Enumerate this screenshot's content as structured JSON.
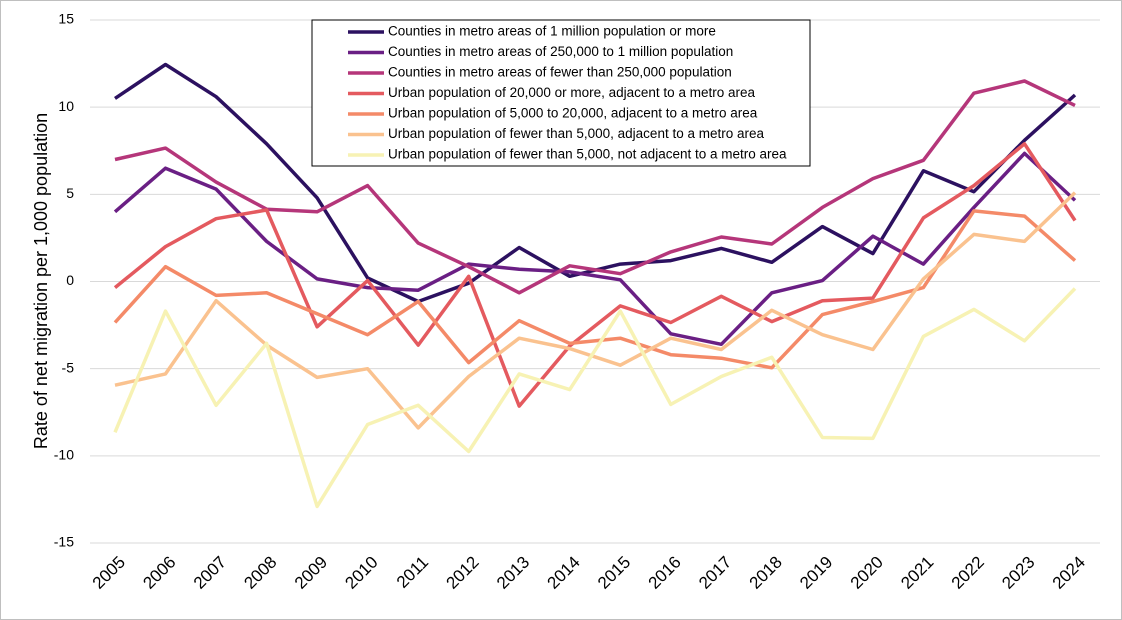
{
  "chart_data": {
    "type": "line",
    "y_label": "Rate of net migration per 1,000 population",
    "categories": [
      "2005",
      "2006",
      "2007",
      "2008",
      "2009",
      "2010",
      "2011",
      "2012",
      "2013",
      "2014",
      "2015",
      "2016",
      "2017",
      "2018",
      "2019",
      "2020",
      "2021",
      "2022",
      "2023",
      "2024"
    ],
    "ylim": [
      -15,
      15
    ],
    "yticks": [
      -15,
      -10,
      -5,
      0,
      5,
      10,
      15
    ],
    "grid": true,
    "legend": "top-center",
    "series": [
      {
        "name": "Counties in metro areas of 1 million population or more",
        "color": "#2c1160",
        "values": [
          10.5,
          12.45,
          10.6,
          7.9,
          4.8,
          0.2,
          -1.15,
          -0.1,
          1.95,
          0.3,
          1.0,
          1.2,
          1.9,
          1.1,
          3.15,
          1.6,
          6.35,
          5.15,
          8.1,
          10.7
        ]
      },
      {
        "name": "Counties in metro areas of 250,000 to 1 million population",
        "color": "#6a1f84",
        "values": [
          4.0,
          6.5,
          5.3,
          2.3,
          0.15,
          -0.35,
          -0.5,
          1.0,
          0.7,
          0.55,
          0.1,
          -3.0,
          -3.6,
          -0.65,
          0.05,
          2.6,
          1.0,
          4.25,
          7.35,
          4.65
        ]
      },
      {
        "name": "Counties in metro areas of fewer than 250,000 population",
        "color": "#b5367a",
        "values": [
          7.0,
          7.65,
          5.7,
          4.15,
          4.0,
          5.5,
          2.2,
          0.85,
          -0.65,
          0.9,
          0.45,
          1.7,
          2.55,
          2.15,
          4.25,
          5.9,
          6.95,
          10.8,
          11.5,
          10.1
        ]
      },
      {
        "name": "Urban population of 20,000 or more, adjacent to a metro area",
        "color": "#e45a5f",
        "values": [
          -0.35,
          2.0,
          3.6,
          4.1,
          -2.6,
          0.05,
          -3.65,
          0.3,
          -7.15,
          -3.7,
          -1.4,
          -2.35,
          -0.85,
          -2.3,
          -1.1,
          -0.95,
          3.65,
          5.5,
          7.9,
          3.5
        ]
      },
      {
        "name": "Urban population of 5,000 to 20,000, adjacent to a metro area",
        "color": "#f48a68",
        "values": [
          -2.35,
          0.85,
          -0.8,
          -0.65,
          -1.85,
          -3.05,
          -1.15,
          -4.65,
          -2.25,
          -3.55,
          -3.25,
          -4.2,
          -4.4,
          -4.95,
          -1.9,
          -1.15,
          -0.35,
          4.05,
          3.75,
          1.2
        ]
      },
      {
        "name": "Urban population of fewer than 5,000, adjacent to a metro area",
        "color": "#fac28f",
        "values": [
          -5.95,
          -5.3,
          -1.1,
          -3.65,
          -5.5,
          -5.0,
          -8.4,
          -5.45,
          -3.25,
          -3.85,
          -4.8,
          -3.25,
          -3.9,
          -1.65,
          -3.05,
          -3.9,
          0.15,
          2.7,
          2.3,
          5.1
        ]
      },
      {
        "name": "Urban population of fewer than 5,000, not adjacent to a metro area",
        "color": "#f7f2b4",
        "values": [
          -8.65,
          -1.7,
          -7.1,
          -3.55,
          -12.9,
          -8.2,
          -7.1,
          -9.75,
          -5.3,
          -6.2,
          -1.7,
          -7.05,
          -5.45,
          -4.35,
          -8.95,
          -9.0,
          -3.15,
          -1.6,
          -3.4,
          -0.4
        ]
      }
    ]
  }
}
